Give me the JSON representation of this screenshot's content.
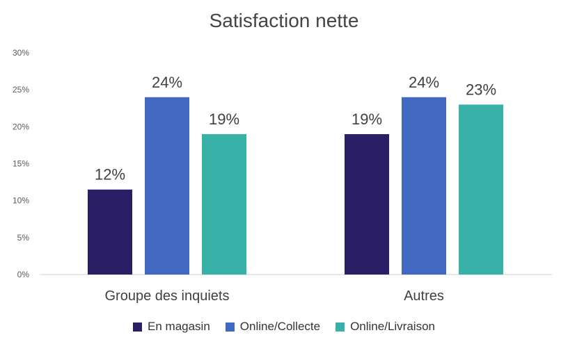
{
  "chart_data": {
    "type": "bar",
    "title": "Satisfaction nette",
    "categories": [
      "Groupe des inquiets",
      "Autres"
    ],
    "series": [
      {
        "name": "En magasin",
        "values": [
          11.5,
          19
        ],
        "labels": [
          "12%",
          "19%"
        ],
        "color": "#2a1e66"
      },
      {
        "name": "Online/Collecte",
        "values": [
          24,
          24
        ],
        "labels": [
          "24%",
          "24%"
        ],
        "color": "#4169c2"
      },
      {
        "name": "Online/Livraison",
        "values": [
          19,
          23
        ],
        "labels": [
          "19%",
          "23%"
        ],
        "color": "#38b2a9"
      }
    ],
    "ylim": [
      0,
      30
    ],
    "yticks": [
      "0%",
      "5%",
      "10%",
      "15%",
      "20%",
      "25%",
      "30%"
    ],
    "grid": false,
    "legend": "bottom"
  }
}
